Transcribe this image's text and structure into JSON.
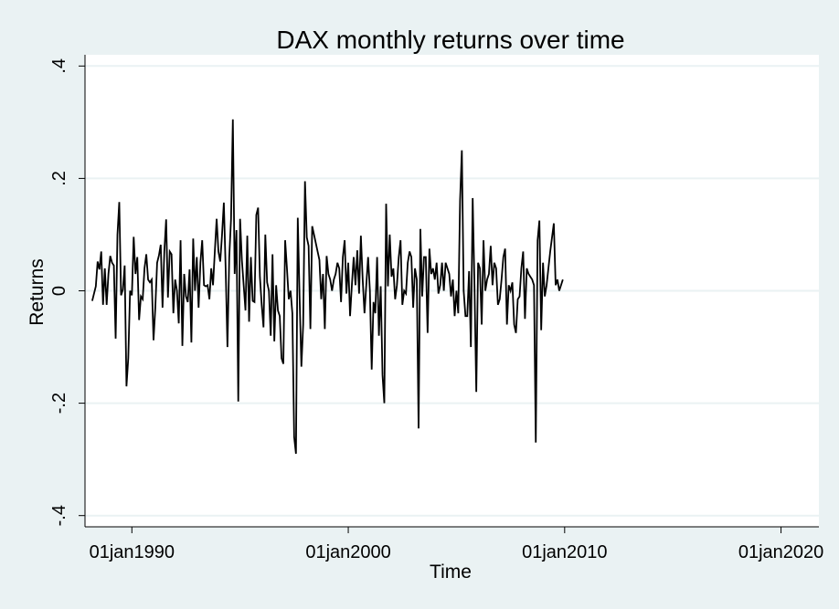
{
  "chart_data": {
    "type": "line",
    "title": "DAX monthly returns over time",
    "xlabel": "Time",
    "ylabel": "Returns",
    "x_ticks": [
      {
        "date": "1990-01-01",
        "label": "01jan1990"
      },
      {
        "date": "2000-01-01",
        "label": "01jan2000"
      },
      {
        "date": "2010-01-01",
        "label": "01jan2010"
      },
      {
        "date": "2020-01-01",
        "label": "01jan2020"
      }
    ],
    "y_ticks": [
      {
        "value": 0.4,
        "label": ".4"
      },
      {
        "value": 0.2,
        "label": ".2"
      },
      {
        "value": 0,
        "label": "0"
      },
      {
        "value": -0.2,
        "label": "-.2"
      },
      {
        "value": -0.4,
        "label": "-.4"
      }
    ],
    "xlim": [
      "1987-11-01",
      "2021-10-01"
    ],
    "ylim": [
      -0.42,
      0.42
    ],
    "grid": true,
    "series": [
      {
        "points": [
          [
            "1988-03-01",
            -0.018
          ],
          [
            "1988-05-01",
            0.008
          ],
          [
            "1988-06-01",
            0.052
          ],
          [
            "1988-07-01",
            0.038
          ],
          [
            "1988-08-01",
            0.07
          ],
          [
            "1988-09-01",
            -0.025
          ],
          [
            "1988-10-01",
            0.04
          ],
          [
            "1988-11-01",
            -0.025
          ],
          [
            "1988-12-01",
            0.03
          ],
          [
            "1989-01-01",
            0.062
          ],
          [
            "1989-02-01",
            0.05
          ],
          [
            "1989-03-01",
            0.045
          ],
          [
            "1989-04-01",
            -0.085
          ],
          [
            "1989-05-01",
            0.1
          ],
          [
            "1989-06-01",
            0.158
          ],
          [
            "1989-07-01",
            -0.008
          ],
          [
            "1989-08-01",
            0.002
          ],
          [
            "1989-09-01",
            0.045
          ],
          [
            "1989-10-01",
            -0.17
          ],
          [
            "1989-11-01",
            -0.12
          ],
          [
            "1989-12-01",
            0.0
          ],
          [
            "1990-01-01",
            -0.008
          ],
          [
            "1990-02-01",
            0.096
          ],
          [
            "1990-03-01",
            0.03
          ],
          [
            "1990-04-01",
            0.06
          ],
          [
            "1990-05-01",
            -0.052
          ],
          [
            "1990-06-01",
            -0.01
          ],
          [
            "1990-07-01",
            -0.015
          ],
          [
            "1990-08-01",
            0.04
          ],
          [
            "1990-09-01",
            0.065
          ],
          [
            "1990-10-01",
            0.02
          ],
          [
            "1990-11-01",
            0.015
          ],
          [
            "1990-12-01",
            0.02
          ],
          [
            "1991-01-01",
            -0.088
          ],
          [
            "1991-02-01",
            -0.03
          ],
          [
            "1991-03-01",
            0.05
          ],
          [
            "1991-04-01",
            0.063
          ],
          [
            "1991-05-01",
            0.082
          ],
          [
            "1991-06-01",
            -0.03
          ],
          [
            "1991-07-01",
            0.07
          ],
          [
            "1991-08-01",
            0.127
          ],
          [
            "1991-09-01",
            -0.012
          ],
          [
            "1991-10-01",
            0.07
          ],
          [
            "1991-11-01",
            0.065
          ],
          [
            "1991-12-01",
            -0.04
          ],
          [
            "1992-01-01",
            0.02
          ],
          [
            "1992-02-01",
            0.0
          ],
          [
            "1992-03-01",
            -0.058
          ],
          [
            "1992-04-01",
            0.09
          ],
          [
            "1992-05-01",
            -0.098
          ],
          [
            "1992-06-01",
            0.03
          ],
          [
            "1992-07-01",
            -0.01
          ],
          [
            "1992-08-01",
            -0.02
          ],
          [
            "1992-09-01",
            0.038
          ],
          [
            "1992-10-01",
            -0.092
          ],
          [
            "1992-11-01",
            0.093
          ],
          [
            "1992-12-01",
            0.0
          ],
          [
            "1993-01-01",
            0.06
          ],
          [
            "1993-02-01",
            -0.03
          ],
          [
            "1993-03-01",
            0.05
          ],
          [
            "1993-04-01",
            0.09
          ],
          [
            "1993-05-01",
            0.01
          ],
          [
            "1993-06-01",
            0.008
          ],
          [
            "1993-07-01",
            0.01
          ],
          [
            "1993-08-01",
            -0.015
          ],
          [
            "1993-09-01",
            0.04
          ],
          [
            "1993-10-01",
            0.01
          ],
          [
            "1993-11-01",
            0.07
          ],
          [
            "1993-12-01",
            0.128
          ],
          [
            "1994-01-01",
            0.07
          ],
          [
            "1994-02-01",
            0.052
          ],
          [
            "1994-03-01",
            0.1
          ],
          [
            "1994-04-01",
            0.157
          ],
          [
            "1994-05-01",
            0.04
          ],
          [
            "1994-06-01",
            -0.1
          ],
          [
            "1994-07-01",
            0.06
          ],
          [
            "1994-08-01",
            0.128
          ],
          [
            "1994-09-01",
            0.305
          ],
          [
            "1994-10-01",
            0.03
          ],
          [
            "1994-11-01",
            0.108
          ],
          [
            "1994-12-01",
            -0.197
          ],
          [
            "1995-01-01",
            0.128
          ],
          [
            "1995-02-01",
            0.055
          ],
          [
            "1995-03-01",
            0.01
          ],
          [
            "1995-04-01",
            -0.035
          ],
          [
            "1995-05-01",
            0.098
          ],
          [
            "1995-06-01",
            -0.055
          ],
          [
            "1995-07-01",
            0.06
          ],
          [
            "1995-08-01",
            -0.018
          ],
          [
            "1995-09-01",
            -0.02
          ],
          [
            "1995-10-01",
            0.135
          ],
          [
            "1995-11-01",
            0.148
          ],
          [
            "1995-12-01",
            0.025
          ],
          [
            "1996-01-01",
            -0.025
          ],
          [
            "1996-02-01",
            -0.065
          ],
          [
            "1996-03-01",
            0.1
          ],
          [
            "1996-04-01",
            0.015
          ],
          [
            "1996-05-01",
            0.0
          ],
          [
            "1996-06-01",
            -0.08
          ],
          [
            "1996-07-01",
            0.065
          ],
          [
            "1996-08-01",
            -0.09
          ],
          [
            "1996-09-01",
            0.01
          ],
          [
            "1996-10-01",
            -0.035
          ],
          [
            "1996-11-01",
            -0.045
          ],
          [
            "1996-12-01",
            -0.12
          ],
          [
            "1997-01-01",
            -0.13
          ],
          [
            "1997-02-01",
            0.09
          ],
          [
            "1997-03-01",
            0.04
          ],
          [
            "1997-04-01",
            -0.015
          ],
          [
            "1997-05-01",
            0.0
          ],
          [
            "1997-06-01",
            -0.04
          ],
          [
            "1997-07-01",
            -0.26
          ],
          [
            "1997-08-01",
            -0.29
          ],
          [
            "1997-09-01",
            0.13
          ],
          [
            "1997-10-01",
            -0.01
          ],
          [
            "1997-11-01",
            -0.135
          ],
          [
            "1997-12-01",
            -0.06
          ],
          [
            "1998-01-01",
            0.195
          ],
          [
            "1998-02-01",
            0.095
          ],
          [
            "1998-03-01",
            0.08
          ],
          [
            "1998-04-01",
            -0.068
          ],
          [
            "1998-05-01",
            0.115
          ],
          [
            "1998-06-01",
            0.1
          ],
          [
            "1998-07-01",
            0.085
          ],
          [
            "1998-08-01",
            0.07
          ],
          [
            "1998-09-01",
            0.055
          ],
          [
            "1998-10-01",
            -0.015
          ],
          [
            "1998-11-01",
            0.03
          ],
          [
            "1998-12-01",
            -0.068
          ],
          [
            "1999-01-01",
            0.062
          ],
          [
            "1999-02-01",
            0.03
          ],
          [
            "1999-03-01",
            0.02
          ],
          [
            "1999-04-01",
            0.0
          ],
          [
            "1999-05-01",
            0.02
          ],
          [
            "1999-06-01",
            0.03
          ],
          [
            "1999-07-01",
            0.05
          ],
          [
            "1999-08-01",
            0.04
          ],
          [
            "1999-09-01",
            -0.02
          ],
          [
            "1999-10-01",
            0.06
          ],
          [
            "1999-11-01",
            0.09
          ],
          [
            "1999-12-01",
            -0.005
          ],
          [
            "2000-01-01",
            0.05
          ],
          [
            "2000-02-01",
            -0.045
          ],
          [
            "2000-03-01",
            0.01
          ],
          [
            "2000-04-01",
            0.06
          ],
          [
            "2000-05-01",
            0.01
          ],
          [
            "2000-06-01",
            0.072
          ],
          [
            "2000-07-01",
            -0.005
          ],
          [
            "2000-08-01",
            0.098
          ],
          [
            "2000-09-01",
            0.02
          ],
          [
            "2000-10-01",
            -0.04
          ],
          [
            "2000-11-01",
            0.01
          ],
          [
            "2000-12-01",
            0.06
          ],
          [
            "2001-01-01",
            0.0
          ],
          [
            "2001-02-01",
            -0.14
          ],
          [
            "2001-03-01",
            -0.02
          ],
          [
            "2001-04-01",
            -0.04
          ],
          [
            "2001-05-01",
            0.06
          ],
          [
            "2001-06-01",
            -0.08
          ],
          [
            "2001-07-01",
            0.008
          ],
          [
            "2001-08-01",
            -0.15
          ],
          [
            "2001-09-01",
            -0.2
          ],
          [
            "2001-10-01",
            0.155
          ],
          [
            "2001-11-01",
            0.008
          ],
          [
            "2001-12-01",
            0.1
          ],
          [
            "2002-01-01",
            0.025
          ],
          [
            "2002-02-01",
            0.04
          ],
          [
            "2002-03-01",
            -0.015
          ],
          [
            "2002-04-01",
            0.01
          ],
          [
            "2002-05-01",
            0.06
          ],
          [
            "2002-06-01",
            0.09
          ],
          [
            "2002-07-01",
            -0.025
          ],
          [
            "2002-08-01",
            0.0
          ],
          [
            "2002-09-01",
            -0.005
          ],
          [
            "2002-10-01",
            0.05
          ],
          [
            "2002-11-01",
            0.07
          ],
          [
            "2002-12-01",
            0.06
          ],
          [
            "2003-01-01",
            -0.03
          ],
          [
            "2003-02-01",
            0.04
          ],
          [
            "2003-03-01",
            0.02
          ],
          [
            "2003-04-01",
            -0.245
          ],
          [
            "2003-05-01",
            0.11
          ],
          [
            "2003-06-01",
            -0.01
          ],
          [
            "2003-07-01",
            0.06
          ],
          [
            "2003-08-01",
            0.06
          ],
          [
            "2003-09-01",
            -0.075
          ],
          [
            "2003-10-01",
            0.075
          ],
          [
            "2003-11-01",
            0.03
          ],
          [
            "2003-12-01",
            0.04
          ],
          [
            "2004-01-01",
            0.02
          ],
          [
            "2004-02-01",
            0.05
          ],
          [
            "2004-03-01",
            -0.005
          ],
          [
            "2004-04-01",
            0.01
          ],
          [
            "2004-05-01",
            0.05
          ],
          [
            "2004-06-01",
            0.0
          ],
          [
            "2004-07-01",
            0.05
          ],
          [
            "2004-08-01",
            0.04
          ],
          [
            "2004-09-01",
            0.03
          ],
          [
            "2004-10-01",
            -0.01
          ],
          [
            "2004-11-01",
            0.02
          ],
          [
            "2004-12-01",
            -0.045
          ],
          [
            "2005-01-01",
            0.0
          ],
          [
            "2005-02-01",
            -0.04
          ],
          [
            "2005-03-01",
            0.16
          ],
          [
            "2005-04-01",
            0.25
          ],
          [
            "2005-05-01",
            0.0
          ],
          [
            "2005-06-01",
            -0.045
          ],
          [
            "2005-07-01",
            -0.045
          ],
          [
            "2005-08-01",
            0.035
          ],
          [
            "2005-09-01",
            -0.1
          ],
          [
            "2005-10-01",
            0.165
          ],
          [
            "2005-11-01",
            0.01
          ],
          [
            "2005-12-01",
            -0.18
          ],
          [
            "2006-01-01",
            0.05
          ],
          [
            "2006-02-01",
            0.04
          ],
          [
            "2006-03-01",
            -0.06
          ],
          [
            "2006-04-01",
            0.09
          ],
          [
            "2006-05-01",
            0.0
          ],
          [
            "2006-06-01",
            0.02
          ],
          [
            "2006-07-01",
            0.03
          ],
          [
            "2006-08-01",
            0.08
          ],
          [
            "2006-09-01",
            0.01
          ],
          [
            "2006-10-01",
            0.05
          ],
          [
            "2006-11-01",
            0.04
          ],
          [
            "2006-12-01",
            -0.025
          ],
          [
            "2007-01-01",
            -0.015
          ],
          [
            "2007-02-01",
            0.02
          ],
          [
            "2007-03-01",
            0.06
          ],
          [
            "2007-04-01",
            0.075
          ],
          [
            "2007-05-01",
            -0.06
          ],
          [
            "2007-06-01",
            0.01
          ],
          [
            "2007-07-01",
            0.0
          ],
          [
            "2007-08-01",
            0.015
          ],
          [
            "2007-09-01",
            -0.06
          ],
          [
            "2007-10-01",
            -0.075
          ],
          [
            "2007-11-01",
            -0.015
          ],
          [
            "2007-12-01",
            -0.01
          ],
          [
            "2008-01-01",
            0.04
          ],
          [
            "2008-02-01",
            0.07
          ],
          [
            "2008-03-01",
            -0.05
          ],
          [
            "2008-04-01",
            0.04
          ],
          [
            "2008-05-01",
            0.03
          ],
          [
            "2008-06-01",
            0.025
          ],
          [
            "2008-07-01",
            0.02
          ],
          [
            "2008-08-01",
            0.01
          ],
          [
            "2008-09-01",
            -0.27
          ],
          [
            "2008-10-01",
            0.09
          ],
          [
            "2008-11-01",
            0.125
          ],
          [
            "2008-12-01",
            -0.07
          ],
          [
            "2009-01-01",
            0.05
          ],
          [
            "2009-02-01",
            -0.01
          ],
          [
            "2009-03-01",
            0.01
          ],
          [
            "2009-04-01",
            0.04
          ],
          [
            "2009-05-01",
            0.07
          ],
          [
            "2009-06-01",
            0.095
          ],
          [
            "2009-07-01",
            0.12
          ],
          [
            "2009-08-01",
            0.01
          ],
          [
            "2009-09-01",
            0.02
          ],
          [
            "2009-10-01",
            0.0
          ],
          [
            "2009-11-01",
            0.01
          ],
          [
            "2009-12-01",
            0.02
          ]
        ]
      }
    ]
  }
}
